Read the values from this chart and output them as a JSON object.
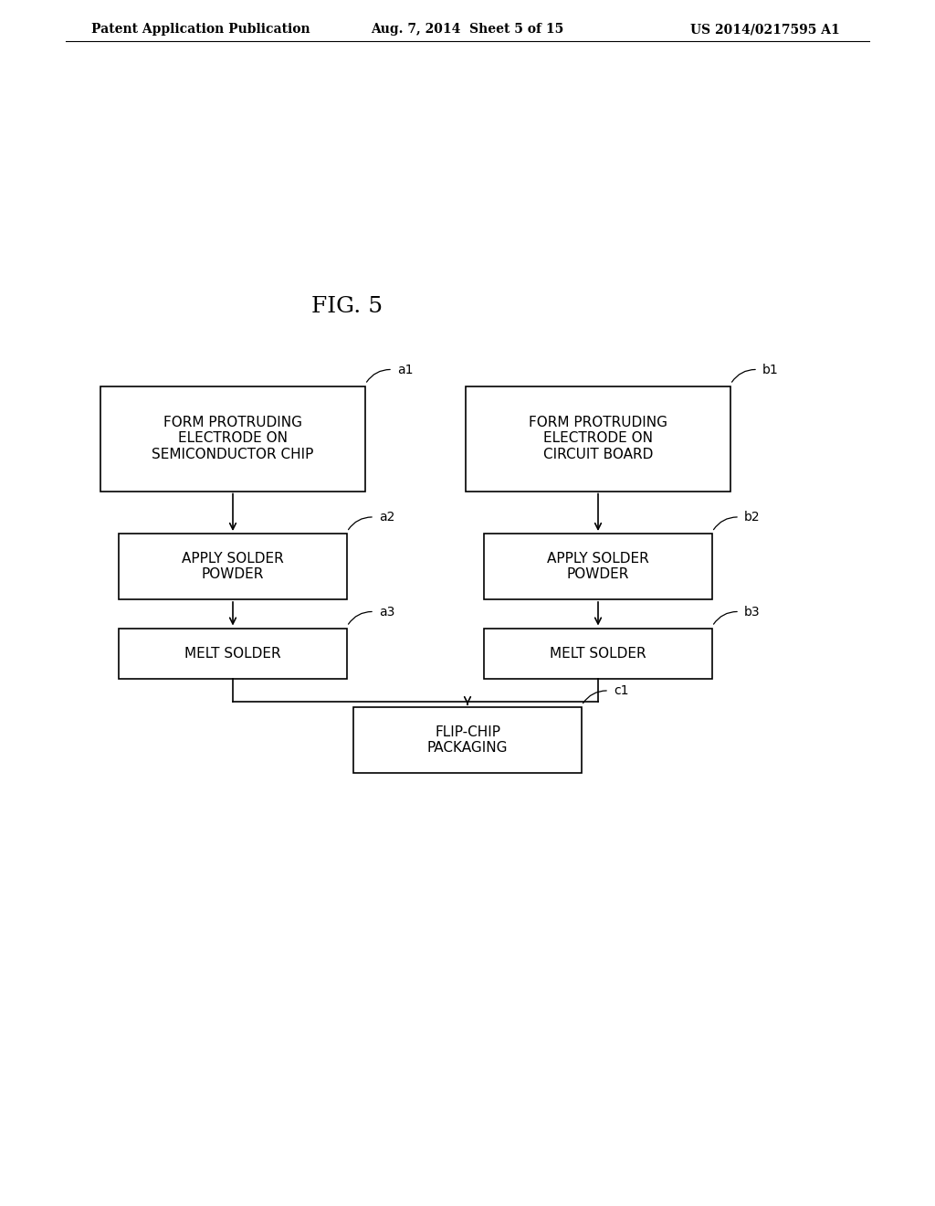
{
  "title": "FIG. 5",
  "header_left": "Patent Application Publication",
  "header_center": "Aug. 7, 2014  Sheet 5 of 15",
  "header_right": "US 2014/0217595 A1",
  "background_color": "#ffffff",
  "text_color": "#000000",
  "box_edge_color": "#000000",
  "boxes": {
    "a1": {
      "label": "FORM PROTRUDING\nELECTRODE ON\nSEMICONDUCTOR CHIP",
      "ref": "a1",
      "col": 0
    },
    "a2": {
      "label": "APPLY SOLDER\nPOWDER",
      "ref": "a2",
      "col": 0
    },
    "a3": {
      "label": "MELT SOLDER",
      "ref": "a3",
      "col": 0
    },
    "b1": {
      "label": "FORM PROTRUDING\nELECTRODE ON\nCIRCUIT BOARD",
      "ref": "b1",
      "col": 1
    },
    "b2": {
      "label": "APPLY SOLDER\nPOWDER",
      "ref": "b2",
      "col": 1
    },
    "b3": {
      "label": "MELT SOLDER",
      "ref": "b3",
      "col": 1
    },
    "c1": {
      "label": "FLIP-CHIP\nPACKAGING",
      "ref": "c1",
      "col": 1
    }
  },
  "font_size_box": 11,
  "font_size_ref": 10,
  "font_size_title": 18,
  "font_size_header": 10
}
